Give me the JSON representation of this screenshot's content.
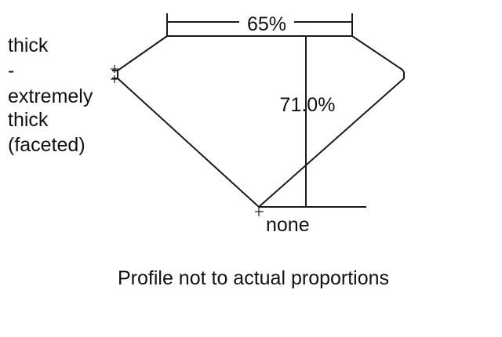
{
  "diagram": {
    "table_label": "65%",
    "depth_label": "71.0%",
    "girdle_label_lines": [
      "thick",
      "-",
      "extremely",
      "thick",
      "(faceted)"
    ],
    "culet_label": "none",
    "caption": "Profile not to actual proportions",
    "line_color": "#1a1a1a"
  }
}
